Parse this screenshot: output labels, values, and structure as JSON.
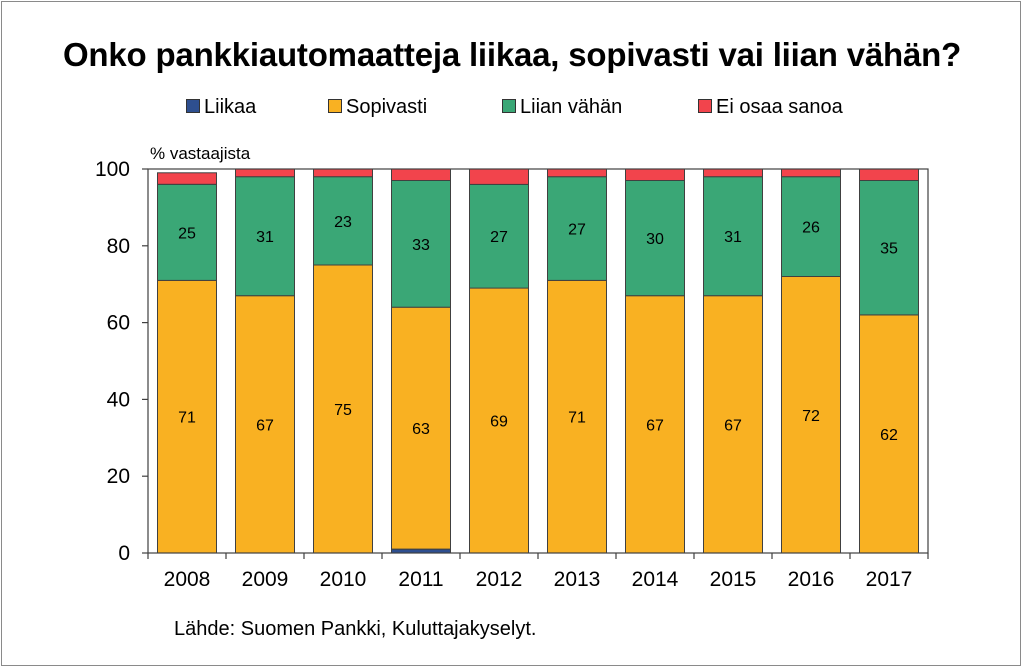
{
  "chart_data": {
    "type": "bar",
    "stacked": true,
    "title": "Onko pankkiautomaatteja liikaa, sopivasti vai liian vähän?",
    "ylabel": "% vastaajista",
    "xlabel": "",
    "ylim": [
      0,
      100
    ],
    "yticks": [
      "0",
      "20",
      "40",
      "60",
      "80",
      "100"
    ],
    "grid": false,
    "legend_position": "top",
    "categories": [
      "2008",
      "2009",
      "2010",
      "2011",
      "2012",
      "2013",
      "2014",
      "2015",
      "2016",
      "2017"
    ],
    "series": [
      {
        "name": "Liikaa",
        "color": "#2e4f8f",
        "values": [
          0,
          0,
          0,
          1,
          0,
          0,
          0,
          0,
          0,
          0
        ]
      },
      {
        "name": "Sopivasti",
        "color": "#f9b122",
        "values": [
          71,
          67,
          75,
          63,
          69,
          71,
          67,
          67,
          72,
          62
        ]
      },
      {
        "name": "Liian vähän",
        "color": "#3aa776",
        "values": [
          25,
          31,
          23,
          33,
          27,
          27,
          30,
          31,
          26,
          35
        ]
      },
      {
        "name": "Ei osaa sanoa",
        "color": "#f2444c",
        "values": [
          3,
          2,
          2,
          3,
          4,
          2,
          3,
          2,
          2,
          3
        ]
      }
    ],
    "data_labels": {
      "Sopivasti": [
        "71",
        "67",
        "75",
        "63",
        "69",
        "71",
        "67",
        "67",
        "72",
        "62"
      ],
      "Liian vähän": [
        "25",
        "31",
        "23",
        "33",
        "27",
        "27",
        "30",
        "31",
        "26",
        "35"
      ]
    },
    "source": "Lähde: Suomen Pankki, Kuluttajakyselyt."
  }
}
